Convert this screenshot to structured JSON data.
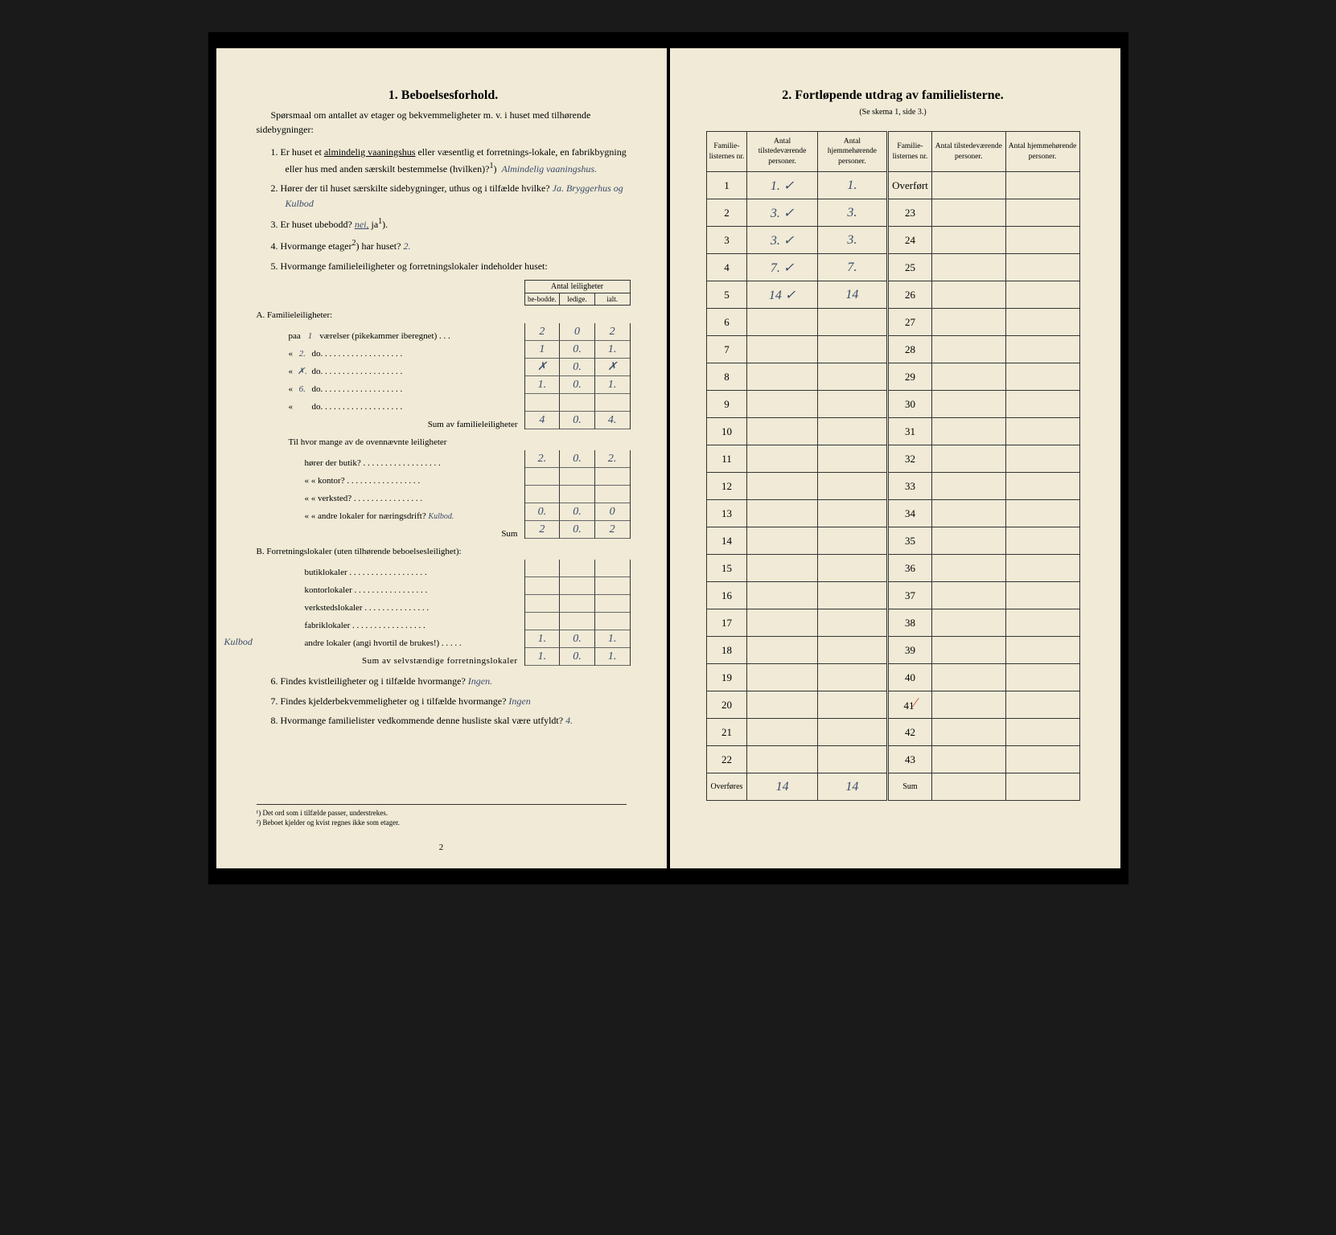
{
  "left": {
    "heading": "1.   Beboelsesforhold.",
    "intro": "Spørsmaal om antallet av etager og bekvemmeligheter m. v. i huset med tilhørende sidebygninger:",
    "q1_prefix": "1.  Er huset et ",
    "q1_underlined": "almindelig vaaningshus",
    "q1_rest": " eller væsentlig et forretnings-lokale, en fabrikbygning eller hus med anden særskilt bestemmelse (hvilken)?",
    "q1_sup": "1",
    "q1_answer": "Almindelig vaaningshus.",
    "q2_text": "2.  Hører der til huset særskilte sidebygninger, uthus og i tilfælde hvilke?  ",
    "q2_answer": "Ja. Bryggerhus og Kulbod",
    "q3_text": "3.  Er huset ubebodd?  ",
    "q3_answer_struck": "nei,",
    "q3_answer_rest": " ja",
    "q3_sup": "1",
    "q3_paren": ").",
    "q4_text": "4.  Hvormange etager",
    "q4_sup": "2",
    "q4_rest": ") har huset?  ",
    "q4_answer": "2.",
    "q5_text": "5.  Hvormange familieleiligheter og forretningslokaler indeholder huset:",
    "table5": {
      "header_title": "Antal leiligheter",
      "cols": [
        "be-bodde.",
        "ledige.",
        "ialt."
      ],
      "sectionA": "A. Familieleiligheter:",
      "rowA1": {
        "label": "paa",
        "hw1": "1",
        "label2": "værelser (pikekammer iberegnet) . . .",
        "vals": [
          "2",
          "0",
          "2"
        ]
      },
      "rowA2": {
        "label": "«",
        "hw1": "2.",
        "label2": "do.   . . . . . . . . . . . . . . . . . .",
        "vals": [
          "1",
          "0.",
          "1."
        ]
      },
      "rowA3": {
        "label": "«",
        "hw1": "✗.",
        "label2": "do.   . . . . . . . . . . . . . . . . . .",
        "vals": [
          "✗",
          "0.",
          "✗"
        ]
      },
      "rowA4": {
        "label": "«",
        "hw1": "6.",
        "label2": "do.   . . . . . . . . . . . . . . . . . .",
        "vals": [
          "1.",
          "0.",
          "1."
        ]
      },
      "rowA5": {
        "label": "«",
        "hw1": "",
        "label2": "do.   . . . . . . . . . . . . . . . . . .",
        "vals": [
          "",
          "",
          ""
        ]
      },
      "sumA": {
        "label": "Sum av familieleiligheter",
        "vals": [
          "4",
          "0.",
          "4."
        ]
      },
      "midtext": "Til hvor mange av de ovennævnte leiligheter",
      "rowB1": {
        "label": "hører der butik? . . . . . . . . . . . . . . . . . .",
        "vals": [
          "2.",
          "0.",
          "2."
        ]
      },
      "rowB2": {
        "label": "«      « kontor? . . . . . . . . . . . . . . . . .",
        "vals": [
          "",
          "",
          ""
        ]
      },
      "rowB3": {
        "label": "«      « verksted? . . . . . . . . . . . . . . . .",
        "vals": [
          "",
          "",
          ""
        ]
      },
      "rowB4": {
        "label": "«      « andre lokaler for næringsdrift?",
        "hwnote": "Kulbod.",
        "vals": [
          "0.",
          "0.",
          "0"
        ]
      },
      "sumB": {
        "label": "Sum",
        "vals": [
          "2",
          "0.",
          "2"
        ]
      },
      "sectionB": "B. Forretningslokaler (uten tilhørende beboelsesleilighet):",
      "rowC1": {
        "label": "butiklokaler . . . . . . . . . . . . . . . . . .",
        "vals": [
          "",
          "",
          ""
        ]
      },
      "rowC2": {
        "label": "kontorlokaler . . . . . . . . . . . . . . . . .",
        "vals": [
          "",
          "",
          ""
        ]
      },
      "rowC3": {
        "label": "verkstedslokaler . . . . . . . . . . . . . . .",
        "vals": [
          "",
          "",
          ""
        ]
      },
      "rowC4": {
        "label": "fabriklokaler . . . . . . . . . . . . . . . . .",
        "vals": [
          "",
          "",
          ""
        ]
      },
      "rowC5": {
        "margin": "Kulbod",
        "label": "andre lokaler (angi hvortil de brukes!) . . . . .",
        "vals": [
          "1.",
          "0.",
          "1."
        ]
      },
      "sumC": {
        "label": "Sum av selvstændige forretningslokaler",
        "vals": [
          "1.",
          "0.",
          "1."
        ]
      }
    },
    "q6_text": "6.  Findes kvistleiligheter og i tilfælde hvormange?  ",
    "q6_answer": "Ingen.",
    "q7_text": "7.  Findes kjelderbekvemmeligheter og i tilfælde hvormange?  ",
    "q7_answer": "Ingen",
    "q8_text": "8.  Hvormange familielister vedkommende denne husliste skal være utfyldt?  ",
    "q8_answer": "4.",
    "footnote1": "¹) Det ord som i tilfælde passer, understrekes.",
    "footnote2": "²) Beboet kjelder og kvist regnes ikke som etager.",
    "pagenum": "2"
  },
  "right": {
    "heading": "2.   Fortløpende utdrag av familielisterne.",
    "subtitle": "(Se skema 1, side 3.)",
    "cols": {
      "c1": "Familie-listernes nr.",
      "c2": "Antal tilstedeværende personer.",
      "c3": "Antal hjemmehørende personer.",
      "c4": "Familie-listernes nr.",
      "c5": "Antal tilstedeværende personer.",
      "c6": "Antal hjemmehørende personer."
    },
    "overfort": "Overført",
    "rows": [
      {
        "n": "1",
        "a": "1. ✓",
        "b": "1.",
        "m": ""
      },
      {
        "n": "2",
        "a": "3. ✓",
        "b": "3.",
        "m": "23"
      },
      {
        "n": "3",
        "a": "3. ✓",
        "b": "3.",
        "m": "24"
      },
      {
        "n": "4",
        "a": "7. ✓",
        "b": "7.",
        "m": "25"
      },
      {
        "n": "5",
        "a": "14 ✓",
        "b": "14",
        "m": "26"
      },
      {
        "n": "6",
        "a": "",
        "b": "",
        "m": "27"
      },
      {
        "n": "7",
        "a": "",
        "b": "",
        "m": "28"
      },
      {
        "n": "8",
        "a": "",
        "b": "",
        "m": "29"
      },
      {
        "n": "9",
        "a": "",
        "b": "",
        "m": "30"
      },
      {
        "n": "10",
        "a": "",
        "b": "",
        "m": "31"
      },
      {
        "n": "11",
        "a": "",
        "b": "",
        "m": "32"
      },
      {
        "n": "12",
        "a": "",
        "b": "",
        "m": "33"
      },
      {
        "n": "13",
        "a": "",
        "b": "",
        "m": "34"
      },
      {
        "n": "14",
        "a": "",
        "b": "",
        "m": "35"
      },
      {
        "n": "15",
        "a": "",
        "b": "",
        "m": "36"
      },
      {
        "n": "16",
        "a": "",
        "b": "",
        "m": "37"
      },
      {
        "n": "17",
        "a": "",
        "b": "",
        "m": "38"
      },
      {
        "n": "18",
        "a": "",
        "b": "",
        "m": "39"
      },
      {
        "n": "19",
        "a": "",
        "b": "",
        "m": "40"
      },
      {
        "n": "20",
        "a": "",
        "b": "",
        "m": "41",
        "red": true
      },
      {
        "n": "21",
        "a": "",
        "b": "",
        "m": "42"
      },
      {
        "n": "22",
        "a": "",
        "b": "",
        "m": "43"
      }
    ],
    "footer_left": "Overføres",
    "footer_a": "14",
    "footer_b": "14",
    "footer_right": "Sum"
  }
}
